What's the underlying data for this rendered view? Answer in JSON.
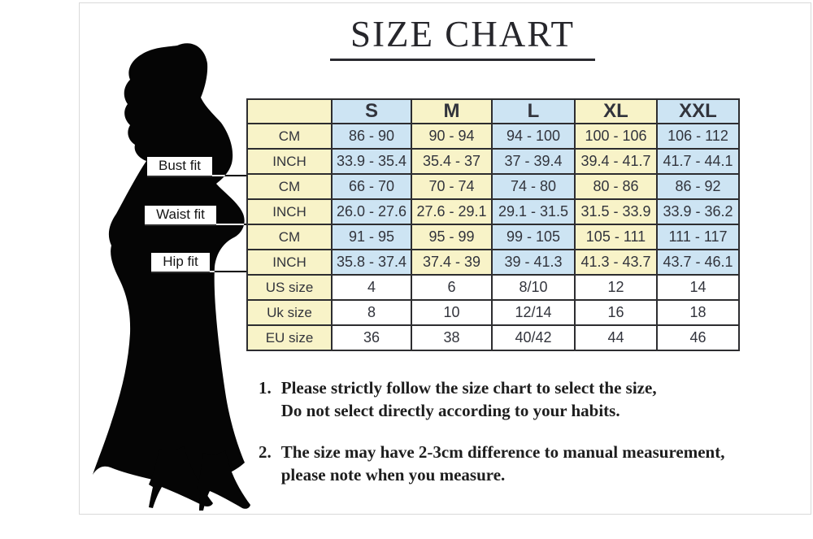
{
  "title": "SIZE CHART",
  "figure": {
    "labels": [
      {
        "text": "Bust fit"
      },
      {
        "text": "Waist fit"
      },
      {
        "text": "Hip fit"
      }
    ]
  },
  "table": {
    "sizes": [
      "S",
      "M",
      "L",
      "XL",
      "XXL"
    ],
    "rows": [
      {
        "label": "CM",
        "scheme": "alt",
        "values": [
          "86 - 90",
          "90 - 94",
          "94 - 100",
          "100 - 106",
          "106 - 112"
        ]
      },
      {
        "label": "INCH",
        "scheme": "alt",
        "values": [
          "33.9 - 35.4",
          "35.4 - 37",
          "37 - 39.4",
          "39.4 - 41.7",
          "41.7 - 44.1"
        ]
      },
      {
        "label": "CM",
        "scheme": "alt",
        "values": [
          "66 - 70",
          "70 - 74",
          "74 - 80",
          "80 - 86",
          "86 - 92"
        ]
      },
      {
        "label": "INCH",
        "scheme": "alt",
        "values": [
          "26.0 - 27.6",
          "27.6 - 29.1",
          "29.1 - 31.5",
          "31.5 - 33.9",
          "33.9 - 36.2"
        ]
      },
      {
        "label": "CM",
        "scheme": "alt",
        "values": [
          "91 - 95",
          "95 - 99",
          "99 - 105",
          "105 - 111",
          "111 - 117"
        ]
      },
      {
        "label": "INCH",
        "scheme": "alt",
        "values": [
          "35.8 - 37.4",
          "37.4 - 39",
          "39 - 41.3",
          "41.3 - 43.7",
          "43.7 - 46.1"
        ]
      },
      {
        "label": "US size",
        "scheme": "white",
        "values": [
          "4",
          "6",
          "8/10",
          "12",
          "14"
        ]
      },
      {
        "label": "Uk size",
        "scheme": "white",
        "values": [
          "8",
          "10",
          "12/14",
          "16",
          "18"
        ]
      },
      {
        "label": "EU size",
        "scheme": "white",
        "values": [
          "36",
          "38",
          "40/42",
          "44",
          "46"
        ]
      }
    ]
  },
  "notes": [
    {
      "num": "1.",
      "lines": [
        "Please strictly follow the size chart to select the size,",
        "Do not select directly according to your habits."
      ]
    },
    {
      "num": "2.",
      "lines": [
        "The size may have 2-3cm difference  to manual measurement,",
        "please note when you measure."
      ]
    }
  ],
  "colors": {
    "cell_yellow": "#f8f3c8",
    "cell_blue": "#cde4f3",
    "cell_white": "#ffffff",
    "table_border": "#2d2d30",
    "text_dark": "#26262b",
    "silhouette_black": "#050505"
  }
}
